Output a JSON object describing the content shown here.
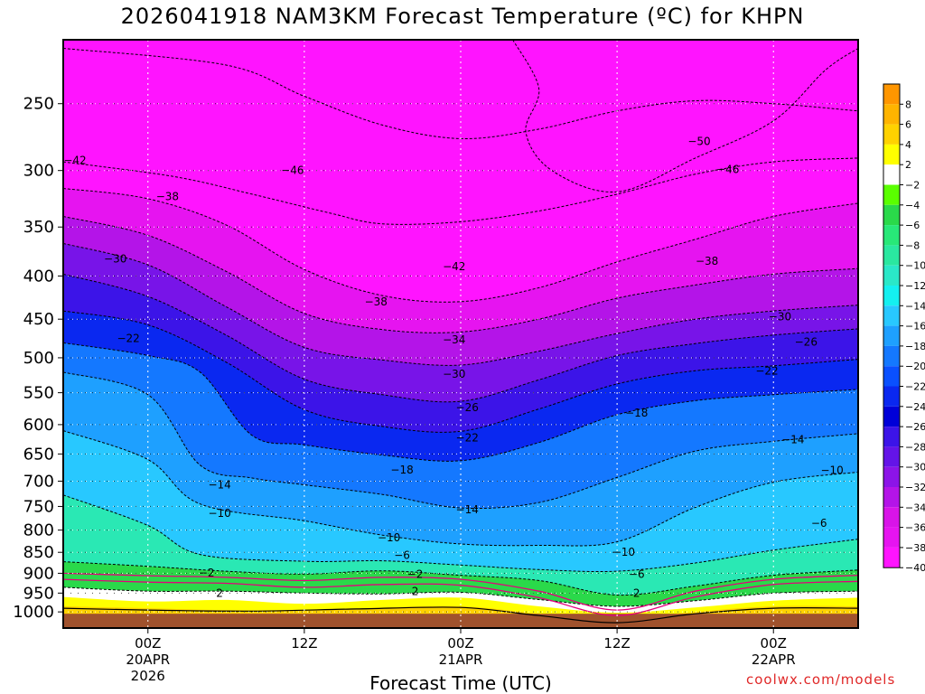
{
  "chart_data": {
    "type": "heatmap",
    "title": "2026041918 NAM3KM Forecast Temperature (ºC) for KHPN",
    "xlabel": "Forecast Time (UTC)",
    "ylabel": "",
    "credit": "coolwx.com/models",
    "y_scale": "log-pressure",
    "ylim": [
      1045,
      210
    ],
    "xlim_hours": [
      -6.5,
      54.5
    ],
    "grid": true,
    "legend_position": "right",
    "y_ticks": [
      250,
      300,
      350,
      400,
      450,
      500,
      550,
      600,
      650,
      700,
      750,
      800,
      850,
      900,
      950,
      1000
    ],
    "x_ticks": [
      {
        "hours": 0,
        "lines": [
          "00Z",
          "20APR",
          "2026"
        ]
      },
      {
        "hours": 12,
        "lines": [
          "12Z"
        ]
      },
      {
        "hours": 24,
        "lines": [
          "00Z",
          "21APR"
        ]
      },
      {
        "hours": 36,
        "lines": [
          "12Z"
        ]
      },
      {
        "hours": 48,
        "lines": [
          "00Z",
          "22APR"
        ]
      }
    ],
    "x_time_labels": [
      "2026-04-20 00Z",
      "2026-04-20 12Z",
      "2026-04-21 00Z",
      "2026-04-21 12Z",
      "2026-04-22 00Z"
    ],
    "colorbar": {
      "labels": [
        "8",
        "6",
        "4",
        "2",
        "-2",
        "-4",
        "-6",
        "-8",
        "-10",
        "-12",
        "-14",
        "-16",
        "-18",
        "-20",
        "-22",
        "-24",
        "-26",
        "-28",
        "-30",
        "-32",
        "-34",
        "-36",
        "-38",
        "-40"
      ],
      "colors": [
        "#ff9600",
        "#ffb400",
        "#ffd200",
        "#ffff00",
        "#ffffff",
        "#5aff00",
        "#2ad94a",
        "#28e878",
        "#2ae8a0",
        "#2ae8c8",
        "#14f0f0",
        "#28c8ff",
        "#1ea0ff",
        "#1478ff",
        "#0a50ff",
        "#0a28f0",
        "#0000d8",
        "#3c14e8",
        "#6414e8",
        "#8c14e8",
        "#b414e8",
        "#d814e8",
        "#e614f0",
        "#ff14ff"
      ]
    },
    "colors": {
      "ground": "#a0522d",
      "zero_isotherm": "#e4007c"
    },
    "isotherms": [
      {
        "value": -46,
        "points": [
          [
            -6.5,
            215
          ],
          [
            6,
            225
          ],
          [
            12,
            245
          ],
          [
            18,
            265
          ],
          [
            24,
            275
          ],
          [
            30,
            268
          ],
          [
            36,
            255
          ],
          [
            42,
            248
          ],
          [
            48,
            250
          ],
          [
            54.5,
            255
          ]
        ]
      },
      {
        "value": -42,
        "points": [
          [
            -6.5,
            293
          ],
          [
            2,
            305
          ],
          [
            8,
            320
          ],
          [
            14,
            337
          ],
          [
            18,
            347
          ],
          [
            24,
            345
          ],
          [
            30,
            335
          ],
          [
            36,
            320
          ],
          [
            42,
            303
          ],
          [
            48,
            293
          ],
          [
            54.5,
            290
          ]
        ]
      },
      {
        "value": -38,
        "points": [
          [
            -6.5,
            315
          ],
          [
            0,
            324
          ],
          [
            6,
            348
          ],
          [
            12,
            393
          ],
          [
            18,
            422
          ],
          [
            24,
            429
          ],
          [
            30,
            413
          ],
          [
            36,
            385
          ],
          [
            42,
            362
          ],
          [
            48,
            340
          ],
          [
            54.5,
            328
          ]
        ]
      },
      {
        "value": -34,
        "points": [
          [
            -6.5,
            340
          ],
          [
            0,
            358
          ],
          [
            6,
            395
          ],
          [
            12,
            443
          ],
          [
            18,
            463
          ],
          [
            24,
            466
          ],
          [
            30,
            450
          ],
          [
            36,
            425
          ],
          [
            42,
            410
          ],
          [
            48,
            398
          ],
          [
            54.5,
            392
          ]
        ]
      },
      {
        "value": -30,
        "points": [
          [
            -6.5,
            366
          ],
          [
            0,
            388
          ],
          [
            6,
            435
          ],
          [
            12,
            486
          ],
          [
            18,
            503
          ],
          [
            24,
            510
          ],
          [
            30,
            491
          ],
          [
            36,
            468
          ],
          [
            42,
            450
          ],
          [
            48,
            440
          ],
          [
            54.5,
            433
          ]
        ]
      },
      {
        "value": -26,
        "points": [
          [
            -6.5,
            398
          ],
          [
            0,
            423
          ],
          [
            6,
            470
          ],
          [
            12,
            530
          ],
          [
            18,
            553
          ],
          [
            24,
            563
          ],
          [
            30,
            531
          ],
          [
            36,
            497
          ],
          [
            42,
            481
          ],
          [
            48,
            470
          ],
          [
            54.5,
            462
          ]
        ]
      },
      {
        "value": -22,
        "points": [
          [
            -6.5,
            440
          ],
          [
            0,
            457
          ],
          [
            6,
            506
          ],
          [
            12,
            576
          ],
          [
            18,
            603
          ],
          [
            24,
            611
          ],
          [
            30,
            575
          ],
          [
            36,
            537
          ],
          [
            42,
            518
          ],
          [
            48,
            511
          ],
          [
            54.5,
            502
          ]
        ]
      },
      {
        "value": -18,
        "points": [
          [
            -6.5,
            480
          ],
          [
            0,
            497
          ],
          [
            4,
            520
          ],
          [
            8,
            618
          ],
          [
            12,
            634
          ],
          [
            18,
            652
          ],
          [
            24,
            662
          ],
          [
            30,
            630
          ],
          [
            36,
            584
          ],
          [
            42,
            562
          ],
          [
            48,
            553
          ],
          [
            54.5,
            545
          ]
        ]
      },
      {
        "value": -14,
        "points": [
          [
            -6.5,
            520
          ],
          [
            0,
            553
          ],
          [
            4,
            670
          ],
          [
            8,
            694
          ],
          [
            12,
            707
          ],
          [
            18,
            726
          ],
          [
            24,
            753
          ],
          [
            30,
            742
          ],
          [
            36,
            693
          ],
          [
            42,
            645
          ],
          [
            48,
            628
          ],
          [
            54.5,
            615
          ]
        ]
      },
      {
        "value": -10,
        "points": [
          [
            -6.5,
            610
          ],
          [
            0,
            660
          ],
          [
            4,
            745
          ],
          [
            12,
            780
          ],
          [
            18,
            811
          ],
          [
            24,
            831
          ],
          [
            30,
            834
          ],
          [
            36,
            826
          ],
          [
            42,
            752
          ],
          [
            48,
            702
          ],
          [
            54.5,
            683
          ]
        ]
      },
      {
        "value": -6,
        "points": [
          [
            -6.5,
            727
          ],
          [
            0,
            790
          ],
          [
            4,
            855
          ],
          [
            12,
            871
          ],
          [
            18,
            870
          ],
          [
            24,
            880
          ],
          [
            30,
            891
          ],
          [
            36,
            895
          ],
          [
            42,
            875
          ],
          [
            48,
            845
          ],
          [
            54.5,
            820
          ]
        ]
      },
      {
        "value": -2,
        "points": [
          [
            -6.5,
            872
          ],
          [
            0,
            883
          ],
          [
            6,
            895
          ],
          [
            12,
            902
          ],
          [
            18,
            894
          ],
          [
            24,
            905
          ],
          [
            30,
            918
          ],
          [
            36,
            955
          ],
          [
            42,
            932
          ],
          [
            48,
            905
          ],
          [
            54.5,
            892
          ]
        ]
      },
      {
        "value": 2,
        "points": [
          [
            -6.5,
            935
          ],
          [
            0,
            945
          ],
          [
            6,
            945
          ],
          [
            12,
            950
          ],
          [
            18,
            952
          ],
          [
            24,
            948
          ],
          [
            30,
            967
          ],
          [
            36,
            985
          ],
          [
            42,
            970
          ],
          [
            48,
            950
          ],
          [
            54.5,
            945
          ]
        ]
      }
    ],
    "contour_labels": [
      {
        "text": "-42",
        "x": -5.6,
        "p": 292
      },
      {
        "text": "-46",
        "x": 11.1,
        "p": 300
      },
      {
        "text": "-50",
        "x": 42.3,
        "p": 277
      },
      {
        "text": "-46",
        "x": 44.5,
        "p": 299
      },
      {
        "text": "-38",
        "x": 1.5,
        "p": 322
      },
      {
        "text": "-30",
        "x": -2.5,
        "p": 382
      },
      {
        "text": "-42",
        "x": 23.5,
        "p": 390
      },
      {
        "text": "-38",
        "x": 42.9,
        "p": 384
      },
      {
        "text": "-38",
        "x": 17.5,
        "p": 429
      },
      {
        "text": "-22",
        "x": -1.5,
        "p": 474
      },
      {
        "text": "-34",
        "x": 23.5,
        "p": 476
      },
      {
        "text": "-30",
        "x": 48.5,
        "p": 447
      },
      {
        "text": "-26",
        "x": 50.5,
        "p": 479
      },
      {
        "text": "-30",
        "x": 23.5,
        "p": 523
      },
      {
        "text": "-22",
        "x": 47.5,
        "p": 518
      },
      {
        "text": "-26",
        "x": 24.5,
        "p": 573
      },
      {
        "text": "-18",
        "x": 37.5,
        "p": 581
      },
      {
        "text": "-22",
        "x": 24.5,
        "p": 622
      },
      {
        "text": "-14",
        "x": 49.5,
        "p": 625
      },
      {
        "text": "-18",
        "x": 19.5,
        "p": 679
      },
      {
        "text": "-10",
        "x": 52.5,
        "p": 680
      },
      {
        "text": "-14",
        "x": 5.5,
        "p": 707
      },
      {
        "text": "-14",
        "x": 24.5,
        "p": 757
      },
      {
        "text": "-10",
        "x": 5.5,
        "p": 764
      },
      {
        "text": "-6",
        "x": 51.5,
        "p": 785
      },
      {
        "text": "-10",
        "x": 18.5,
        "p": 817
      },
      {
        "text": "-6",
        "x": 19.5,
        "p": 857
      },
      {
        "text": "-10",
        "x": 36.5,
        "p": 850
      },
      {
        "text": "-2",
        "x": 4.5,
        "p": 899
      },
      {
        "text": "-2",
        "x": 20.5,
        "p": 903
      },
      {
        "text": "-6",
        "x": 37.5,
        "p": 903
      },
      {
        "text": "2",
        "x": 5.5,
        "p": 950
      },
      {
        "text": "2",
        "x": 20.5,
        "p": 946
      },
      {
        "text": "2",
        "x": 37.5,
        "p": 950
      }
    ]
  }
}
